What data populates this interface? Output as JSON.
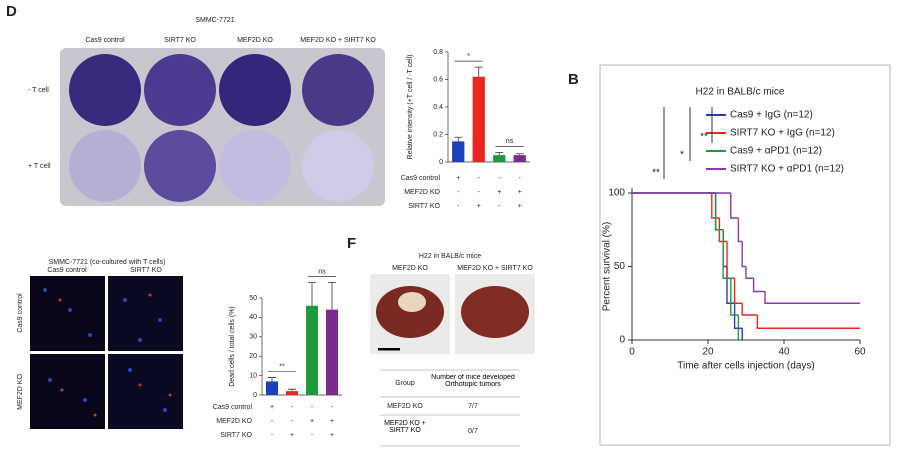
{
  "panel_labels": [
    "D",
    "B",
    "F"
  ],
  "panel_d": {
    "title": "SMMC-7721",
    "columns": [
      "Cas9 control",
      "SIRT7 KO",
      "MEF2D KO",
      "MEF2D KO + SIRT7 KO"
    ],
    "rows": [
      "- T cell",
      "+ T cell"
    ]
  },
  "panel_e": {
    "title": "SMMC-7721 (co-cultured with T cells)",
    "columns": [
      "Cas9 control",
      "SIRT7 KO"
    ],
    "rows": [
      "Cas9 control",
      "MEF2D KO"
    ]
  },
  "panel_f": {
    "title": "H22 in BALB/c mice",
    "columns": [
      "MEF2D KO",
      "MEF2D KO + SIRT7 KO"
    ],
    "table": {
      "header": [
        "Group",
        "Number of mice developed Orthotopic tumors"
      ],
      "rows": [
        [
          "MEF2D KO",
          "7/7"
        ],
        [
          "MEF2D KO + SIRT7 KO",
          "0/7"
        ]
      ]
    }
  },
  "chart_data": [
    {
      "type": "bar",
      "ylabel": "Relative intensity (+T cell / -T cell)",
      "values": [
        0.15,
        0.62,
        0.05,
        0.05
      ],
      "errors": [
        0.03,
        0.07,
        0.02,
        0.01
      ],
      "colors": [
        "#1f3fbf",
        "#e8281e",
        "#1e9a3c",
        "#7a2a8c"
      ],
      "ylim": [
        0,
        0.8
      ],
      "yticks": [
        0,
        0.2,
        0.4,
        0.6,
        0.8
      ],
      "conditions": [
        {
          "name": "Cas9 control",
          "signs": [
            "+",
            "-",
            "-",
            "-"
          ]
        },
        {
          "name": "MEF2D KO",
          "signs": [
            "-",
            "-",
            "+",
            "+"
          ]
        },
        {
          "name": "SIRT7 KO",
          "signs": [
            "-",
            "+",
            "-",
            "+"
          ]
        }
      ],
      "annotations": [
        "*",
        "ns"
      ]
    },
    {
      "type": "bar",
      "ylabel": "Dead cells / total cells (%)",
      "values": [
        7,
        2,
        46,
        44
      ],
      "errors": [
        2,
        1,
        12,
        14
      ],
      "colors": [
        "#1f3fbf",
        "#e8281e",
        "#1e9a3c",
        "#7a2a8c"
      ],
      "ylim": [
        0,
        50
      ],
      "yticks": [
        0,
        10,
        20,
        30,
        40,
        50
      ],
      "conditions": [
        {
          "name": "Cas9 control",
          "signs": [
            "+",
            "-",
            "-",
            "-"
          ]
        },
        {
          "name": "MEF2D KO",
          "signs": [
            "-",
            "-",
            "+",
            "+"
          ]
        },
        {
          "name": "SIRT7 KO",
          "signs": [
            "-",
            "+",
            "-",
            "+"
          ]
        }
      ],
      "annotations": [
        "**",
        "ns"
      ]
    },
    {
      "type": "survival",
      "title": "H22 in BALB/c mice",
      "xlabel": "Time after cells injection (days)",
      "ylabel": "Percent survival (%)",
      "xlim": [
        0,
        60
      ],
      "xticks": [
        0,
        20,
        40,
        60
      ],
      "ylim": [
        0,
        100
      ],
      "yticks": [
        0,
        50,
        100
      ],
      "series": [
        {
          "name": "Cas9 + IgG (n=12)",
          "color": "#1f3fbf",
          "x": [
            0,
            22,
            24,
            25,
            27,
            29
          ],
          "values": [
            100,
            75,
            50,
            25,
            8,
            0
          ]
        },
        {
          "name": "SIRT7 KO + IgG (n=12)",
          "color": "#e8281e",
          "x": [
            0,
            21,
            23,
            25,
            27,
            29,
            33,
            60
          ],
          "values": [
            100,
            83,
            67,
            42,
            25,
            17,
            8,
            8
          ]
        },
        {
          "name": "Cas9 + αPD1 (n=12)",
          "color": "#1e9a3c",
          "x": [
            0,
            22,
            24,
            26,
            28
          ],
          "values": [
            100,
            75,
            42,
            17,
            0
          ]
        },
        {
          "name": "SIRT7 KO + αPD1 (n=12)",
          "color": "#8a3aa8",
          "x": [
            0,
            26,
            28,
            29,
            30,
            32,
            35,
            60
          ],
          "values": [
            100,
            83,
            67,
            50,
            42,
            33,
            25,
            25
          ]
        }
      ],
      "annotations": [
        "**",
        "*",
        "**"
      ]
    }
  ]
}
